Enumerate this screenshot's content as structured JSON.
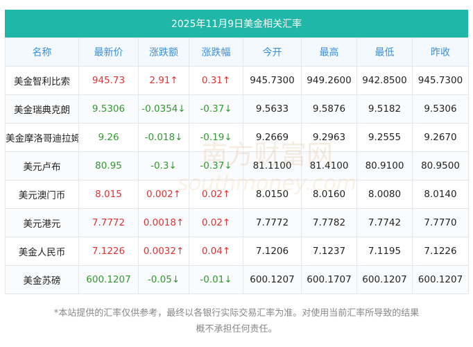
{
  "title": "2025年11月9日美金相关汇率",
  "headers": [
    "名称",
    "最新价",
    "涨跌额",
    "涨跌幅",
    "今开",
    "最高",
    "最低",
    "昨收"
  ],
  "rows": [
    {
      "name": "美金智利比索",
      "latest": "945.73",
      "change": "2.91",
      "change_pct": "0.31",
      "open": "945.7300",
      "high": "949.2600",
      "low": "942.8500",
      "prev_close": "945.7300",
      "direction": "up"
    },
    {
      "name": "美金瑞典克朗",
      "latest": "9.5306",
      "change": "-0.0354",
      "change_pct": "-0.37",
      "open": "9.5633",
      "high": "9.5876",
      "low": "9.5182",
      "prev_close": "9.5306",
      "direction": "down"
    },
    {
      "name": "美金摩洛哥迪拉姆",
      "latest": "9.26",
      "change": "-0.018",
      "change_pct": "-0.19",
      "open": "9.2669",
      "high": "9.2963",
      "low": "9.2555",
      "prev_close": "9.2670",
      "direction": "down"
    },
    {
      "name": "美元卢布",
      "latest": "80.95",
      "change": "-0.3",
      "change_pct": "-0.37",
      "open": "81.1100",
      "high": "81.4100",
      "low": "80.9100",
      "prev_close": "80.9500",
      "direction": "down"
    },
    {
      "name": "美元澳门币",
      "latest": "8.015",
      "change": "0.002",
      "change_pct": "0.02",
      "open": "8.0150",
      "high": "8.0160",
      "low": "8.0080",
      "prev_close": "8.0140",
      "direction": "up"
    },
    {
      "name": "美元港元",
      "latest": "7.7772",
      "change": "0.0018",
      "change_pct": "0.02",
      "open": "7.7772",
      "high": "7.7782",
      "low": "7.7742",
      "prev_close": "7.7770",
      "direction": "up"
    },
    {
      "name": "美金人民币",
      "latest": "7.1226",
      "change": "0.0032",
      "change_pct": "0.04",
      "open": "7.1206",
      "high": "7.1237",
      "low": "7.1195",
      "prev_close": "7.1226",
      "direction": "up"
    },
    {
      "name": "美金苏磅",
      "latest": "600.1207",
      "change": "-0.05",
      "change_pct": "-0.01",
      "open": "600.1207",
      "high": "600.1707",
      "low": "600.1207",
      "prev_close": "600.1207",
      "direction": "down"
    }
  ],
  "arrows": {
    "up": "↑",
    "down": "↓"
  },
  "colors": {
    "up": "#e53030",
    "down": "#2e9a2e",
    "title_bg": "#20b7a8",
    "header_text": "#3b8fd8"
  },
  "watermark": {
    "cn": "南方财富网",
    "en": "southmoney.com"
  },
  "footer": {
    "line1": "*本站提供的汇率仅供参考，最终以各银行实际交易汇率为准。对使用当前汇率所导致的结果",
    "line2": "概不承担任何责任。"
  }
}
